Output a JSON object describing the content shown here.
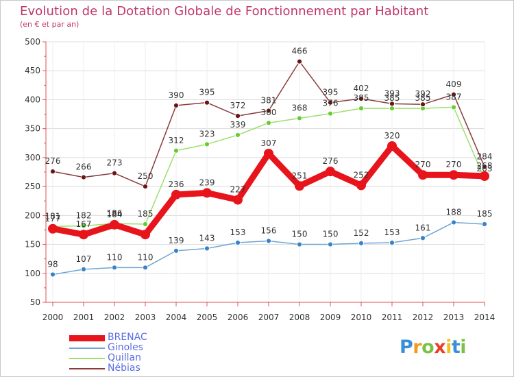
{
  "header": {
    "title": "Evolution de la Dotation Globale de Fonctionnement par Habitant",
    "subtitle": "(en € et par an)"
  },
  "logo": {
    "text": "Proxiti",
    "letters": [
      "P",
      "r",
      "o",
      "x",
      "i",
      "t",
      "i"
    ],
    "letter_colors": [
      "#3a8fd8",
      "#f29a1f",
      "#7cc242",
      "#e8402a",
      "#f2c01f",
      "#3a8fd8",
      "#7cc242"
    ]
  },
  "chart_data": {
    "type": "line",
    "title": "Evolution de la Dotation Globale de Fonctionnement par Habitant",
    "subtitle": "(en € et par an)",
    "xlabel": "",
    "ylabel": "",
    "x": [
      "2000",
      "2001",
      "2002",
      "2003",
      "2004",
      "2005",
      "2006",
      "2007",
      "2008",
      "2009",
      "2010",
      "2011",
      "2012",
      "2013",
      "2014"
    ],
    "ylim": [
      50,
      500
    ],
    "yticks": [
      50,
      100,
      150,
      200,
      250,
      300,
      350,
      400,
      450,
      500
    ],
    "grid": true,
    "legend_position": "bottom-left",
    "series": [
      {
        "name": "BRENAC",
        "color": "#e8141c",
        "marker_color": "#e8141c",
        "values": [
          177,
          167,
          184,
          167,
          236,
          239,
          227,
          307,
          251,
          276,
          252,
          320,
          270,
          270,
          268
        ],
        "labels": [
          "177",
          "167",
          "184",
          "",
          "236",
          "239",
          "227",
          "307",
          "251",
          "276",
          "252",
          "320",
          "270",
          "270",
          "268"
        ]
      },
      {
        "name": "Ginoles",
        "color": "#6fa4d4",
        "marker_color": "#3a82c8",
        "values": [
          98,
          107,
          110,
          110,
          139,
          143,
          153,
          156,
          150,
          150,
          152,
          153,
          161,
          188,
          185
        ],
        "labels": [
          "98",
          "107",
          "110",
          "110",
          "139",
          "143",
          "153",
          "156",
          "150",
          "150",
          "152",
          "153",
          "161",
          "188",
          "185"
        ]
      },
      {
        "name": "Quillan",
        "color": "#9ae06a",
        "marker_color": "#66cc33",
        "values": [
          181,
          182,
          186,
          185,
          312,
          323,
          339,
          360,
          368,
          376,
          385,
          385,
          385,
          387,
          263
        ],
        "labels": [
          "181",
          "182",
          "186",
          "185",
          "312",
          "323",
          "339",
          "360",
          "368",
          "376",
          "385",
          "385",
          "385",
          "387",
          "263"
        ]
      },
      {
        "name": "Nébias",
        "color": "#8a3b3b",
        "marker_color": "#6b1414",
        "values": [
          276,
          266,
          273,
          250,
          390,
          395,
          372,
          381,
          466,
          395,
          402,
          393,
          392,
          409,
          284
        ],
        "labels": [
          "276",
          "266",
          "273",
          "250",
          "390",
          "395",
          "372",
          "381",
          "466",
          "395",
          "402",
          "393",
          "392",
          "409",
          "284"
        ]
      }
    ]
  }
}
